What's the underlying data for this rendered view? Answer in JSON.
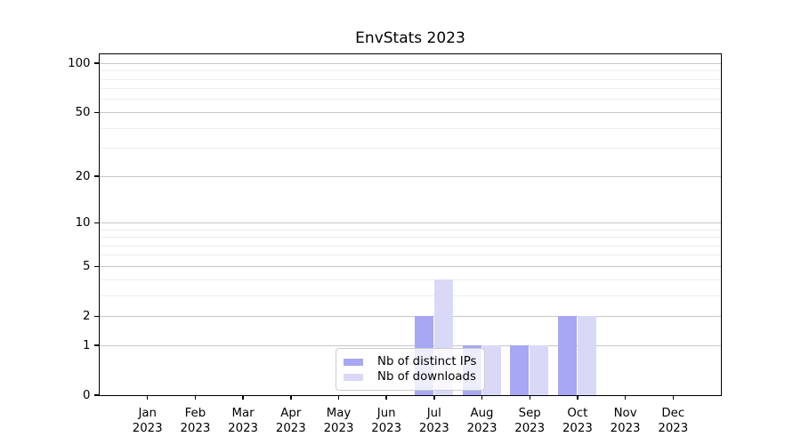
{
  "chart_data": {
    "type": "bar",
    "title": "EnvStats 2023",
    "categories": [
      "Jan",
      "Feb",
      "Mar",
      "Apr",
      "May",
      "Jun",
      "Jul",
      "Aug",
      "Sep",
      "Oct",
      "Nov",
      "Dec"
    ],
    "x_year_label": "2023",
    "series": [
      {
        "name": "Nb of distinct IPs",
        "color": "#a7a7f3",
        "values": [
          0,
          0,
          0,
          0,
          0,
          0,
          2,
          1,
          1,
          2,
          0,
          0
        ]
      },
      {
        "name": "Nb of downloads",
        "color": "#d9d9f7",
        "values": [
          0,
          0,
          0,
          0,
          0,
          0,
          4,
          1,
          1,
          2,
          0,
          0
        ]
      }
    ],
    "xlabel": "",
    "ylabel": "",
    "y_axis_scale": "log1p",
    "ylim": [
      0,
      113.5
    ],
    "y_major_ticks": [
      0,
      1,
      2,
      5,
      10,
      20,
      50,
      100
    ],
    "y_minor_gridlines": [
      3,
      4,
      6,
      7,
      8,
      9,
      30,
      40,
      60,
      70,
      80,
      90
    ],
    "grid": "horizontal",
    "legend_position": "bottom-center-inside"
  }
}
